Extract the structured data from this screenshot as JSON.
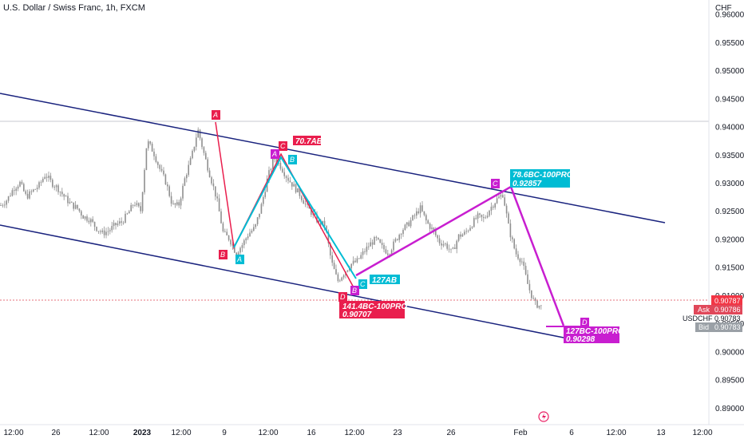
{
  "header": {
    "title": "U.S. Dollar / Swiss Franc, 1h, FXCM"
  },
  "axis": {
    "currency": "CHF",
    "y_ticks": [
      "0.96000",
      "0.95500",
      "0.95000",
      "0.94500",
      "0.94000",
      "0.93500",
      "0.93000",
      "0.92500",
      "0.92000",
      "0.91500",
      "0.91000",
      "0.90500",
      "0.90000",
      "0.89500",
      "0.89000"
    ],
    "x_ticks": [
      {
        "label": "12:00",
        "bold": false
      },
      {
        "label": "26",
        "bold": false
      },
      {
        "label": "12:00",
        "bold": false
      },
      {
        "label": "2023",
        "bold": true
      },
      {
        "label": "12:00",
        "bold": false
      },
      {
        "label": "9",
        "bold": false
      },
      {
        "label": "12:00",
        "bold": false
      },
      {
        "label": "16",
        "bold": false
      },
      {
        "label": "12:00",
        "bold": false
      },
      {
        "label": "23",
        "bold": false
      },
      {
        "label": "26",
        "bold": false
      },
      {
        "label": "Feb",
        "bold": false
      },
      {
        "label": "6",
        "bold": false
      },
      {
        "label": "12:00",
        "bold": false
      },
      {
        "label": "13",
        "bold": false
      },
      {
        "label": "12:00",
        "bold": false
      }
    ]
  },
  "price_tags": {
    "last": "0.90787",
    "ask_label": "Ask",
    "ask": "0.90786",
    "symbol": "USDCHF",
    "symbol_value": "0.90783",
    "bid_label": "Bid",
    "bid": "0.90783"
  },
  "colors": {
    "candles": "#8f8f8f",
    "channel": "#1a237e",
    "red": "#e91e4d",
    "cyan": "#00bcd4",
    "magenta": "#c81ed0"
  },
  "annotations": {
    "p1": {
      "a": "A",
      "b": "B",
      "c": "C",
      "d": "D",
      "ratio": "70.7AB",
      "ext1": "141.4BC-100PRO",
      "ext2": "0.90707"
    },
    "p2": {
      "a": "A",
      "b": "B",
      "c": "C",
      "ratio": "127AB"
    },
    "p3": {
      "b": "B",
      "c": "C",
      "d": "D",
      "ext1": "78.6BC-100PRO",
      "ext2": "0.92857",
      "ext3": "127BC-100PRO",
      "ext4": "0.90298"
    }
  },
  "chart_data": {
    "type": "candlestick",
    "title": "U.S. Dollar / Swiss Franc, 1h, FXCM",
    "ylabel": "CHF",
    "ylim": [
      0.887,
      0.9625
    ],
    "close_path": [
      [
        0.926,
        0.927
      ],
      [
        0.929,
        0.93
      ],
      [
        0.9275,
        0.9285
      ],
      [
        0.9295,
        0.9315
      ],
      [
        0.93,
        0.929
      ],
      [
        0.9275,
        0.9262
      ],
      [
        0.9255,
        0.924
      ],
      [
        0.9235,
        0.922
      ],
      [
        0.921,
        0.9215
      ],
      [
        0.9225,
        0.923
      ],
      [
        0.9245,
        0.9265
      ],
      [
        0.925,
        0.9375
      ],
      [
        0.9355,
        0.9325
      ],
      [
        0.93,
        0.926
      ],
      [
        0.926,
        0.931
      ],
      [
        0.9345,
        0.9395
      ],
      [
        0.935,
        0.931
      ],
      [
        0.927,
        0.921
      ],
      [
        0.92,
        0.9175
      ],
      [
        0.919,
        0.921
      ],
      [
        0.922,
        0.926
      ],
      [
        0.931,
        0.9345
      ],
      [
        0.933,
        0.931
      ],
      [
        0.9295,
        0.928
      ],
      [
        0.926,
        0.9245
      ],
      [
        0.923,
        0.9225
      ],
      [
        0.916,
        0.9125
      ],
      [
        0.914,
        0.9155
      ],
      [
        0.916,
        0.9175
      ],
      [
        0.919,
        0.92
      ],
      [
        0.9185,
        0.9175
      ],
      [
        0.9195,
        0.9215
      ],
      [
        0.9225,
        0.924
      ],
      [
        0.9255,
        0.923
      ],
      [
        0.9215,
        0.9195
      ],
      [
        0.919,
        0.9175
      ],
      [
        0.9205,
        0.921
      ],
      [
        0.9225,
        0.924
      ],
      [
        0.9235,
        0.9255
      ],
      [
        0.927,
        0.928
      ],
      [
        0.9215,
        0.9175
      ],
      [
        0.916,
        0.9115
      ],
      [
        0.9085,
        0.908
      ]
    ],
    "channel_upper": [
      [
        0,
        0.9463
      ],
      [
        833,
        0.9222
      ]
    ],
    "channel_lower": [
      [
        0,
        0.9218
      ],
      [
        706,
        0.9003
      ]
    ],
    "last_price": 0.90787,
    "ask": 0.90786,
    "bid": 0.90783
  }
}
